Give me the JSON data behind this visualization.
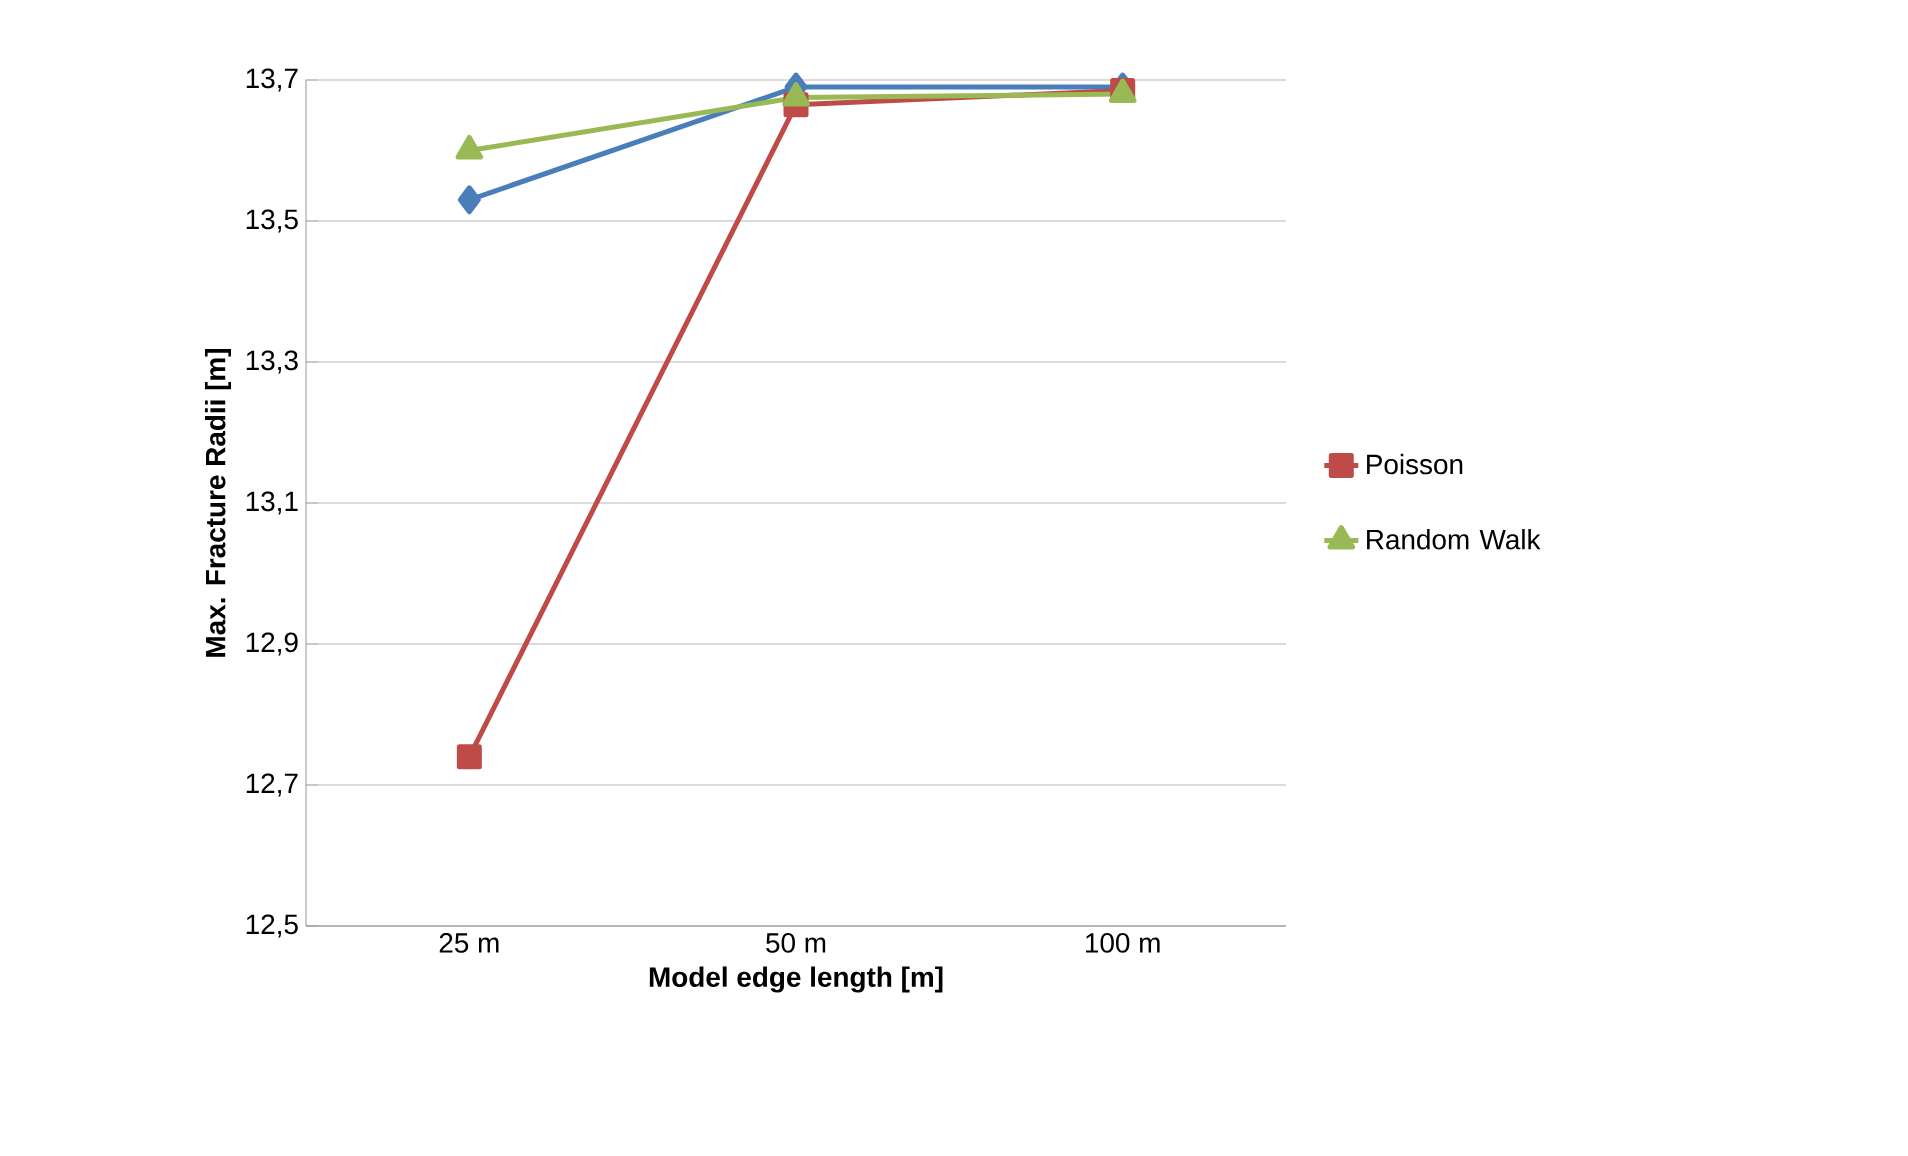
{
  "chart_data": {
    "type": "line",
    "xlabel": "Model edge length [m]",
    "ylabel": "Max. Fracture Radii [m]",
    "categories": [
      "25 m",
      "50 m",
      "100 m"
    ],
    "series": [
      {
        "color": "#4a7ebb",
        "marker": "diamond",
        "values": [
          13.53,
          13.69,
          13.69
        ]
      },
      {
        "name": "Poisson",
        "color": "#be4b48",
        "marker": "square",
        "values": [
          12.74,
          13.665,
          13.685
        ]
      },
      {
        "name": "Random Walk",
        "color": "#98b954",
        "marker": "triangle",
        "values": [
          13.6,
          13.675,
          13.68
        ]
      }
    ],
    "ylim": [
      12.5,
      13.7
    ],
    "yticks": [
      {
        "value": 12.5,
        "label": "12,5"
      },
      {
        "value": 12.7,
        "label": "12,7"
      },
      {
        "value": 12.9,
        "label": "12,9"
      },
      {
        "value": 13.1,
        "label": "13,1"
      },
      {
        "value": 13.3,
        "label": "13,3"
      },
      {
        "value": 13.5,
        "label": "13,5"
      },
      {
        "value": 13.7,
        "label": "13,7"
      }
    ],
    "grid": "y",
    "legend": "right",
    "line_style": "solid"
  }
}
